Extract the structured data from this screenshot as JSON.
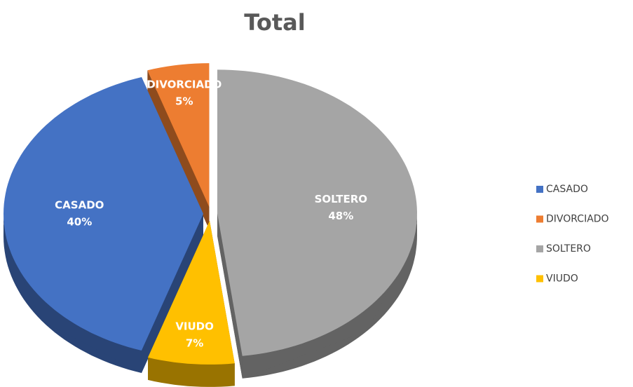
{
  "chart_data": {
    "type": "pie",
    "title": "Total",
    "categories": [
      "CASADO",
      "DIVORCIADO",
      "SOLTERO",
      "VIUDO"
    ],
    "values": [
      40,
      5,
      48,
      7
    ],
    "value_labels": [
      "40%",
      "5%",
      "48%",
      "7%"
    ],
    "colors": [
      "#4472c4",
      "#ed7d31",
      "#a5a5a5",
      "#ffc000"
    ],
    "legend": "right"
  }
}
